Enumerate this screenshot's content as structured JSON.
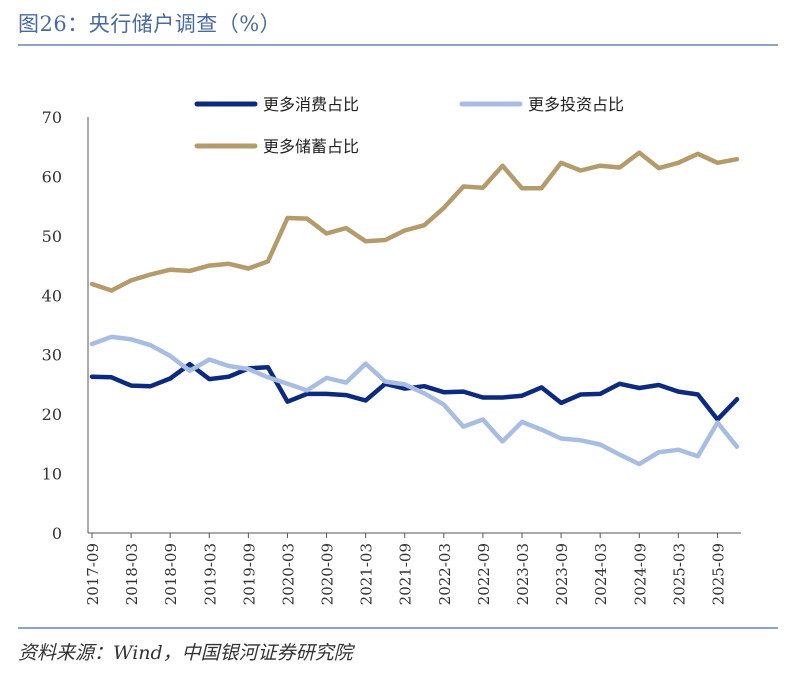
{
  "header": {
    "title": "图26：央行储户调查（%）"
  },
  "footer": {
    "source": "资料来源：Wind，中国银河证券研究院"
  },
  "chart_data": {
    "type": "line",
    "title": "",
    "xlabel": "",
    "ylabel": "",
    "ylim": [
      0,
      70
    ],
    "yticks": [
      0,
      10,
      20,
      30,
      40,
      50,
      60,
      70
    ],
    "grid": false,
    "legend_position": "top",
    "x": [
      "2017-09",
      "2017-12",
      "2018-03",
      "2018-06",
      "2018-09",
      "2018-12",
      "2019-03",
      "2019-06",
      "2019-09",
      "2019-12",
      "2020-03",
      "2020-06",
      "2020-09",
      "2020-12",
      "2021-03",
      "2021-06",
      "2021-09",
      "2021-12",
      "2022-03",
      "2022-06",
      "2022-09",
      "2022-12",
      "2023-03",
      "2023-06",
      "2023-09",
      "2023-12",
      "2024-03",
      "2024-06",
      "2024-09",
      "2024-12",
      "2025-03",
      "2025-06",
      "2025-09",
      "2025-12"
    ],
    "x_tick_labels": [
      "2017-09",
      "2018-03",
      "2018-09",
      "2019-03",
      "2019-09",
      "2020-03",
      "2020-09",
      "2021-03",
      "2021-09",
      "2022-03",
      "2022-09",
      "2023-03",
      "2023-09",
      "2024-03",
      "2024-09",
      "2025-03",
      "2025-09"
    ],
    "series": [
      {
        "name": "更多消费占比",
        "color": "#0d2b7e",
        "values": [
          26.3,
          26.2,
          24.8,
          24.7,
          26.0,
          28.4,
          25.9,
          26.3,
          27.7,
          27.9,
          22.1,
          23.4,
          23.4,
          23.2,
          22.3,
          25.1,
          24.3,
          24.7,
          23.7,
          23.8,
          22.8,
          22.8,
          23.1,
          24.5,
          21.9,
          23.3,
          23.4,
          25.1,
          24.4,
          24.9,
          23.8,
          23.3,
          19.1,
          22.5
        ]
      },
      {
        "name": "更多投资占比",
        "color": "#a9bde3",
        "values": [
          31.8,
          33.0,
          32.6,
          31.6,
          29.8,
          27.3,
          29.2,
          28.1,
          27.6,
          26.2,
          25.1,
          24.0,
          26.1,
          25.3,
          28.5,
          25.5,
          25.0,
          23.5,
          21.6,
          17.9,
          19.1,
          15.4,
          18.7,
          17.4,
          15.9,
          15.6,
          14.9,
          13.2,
          11.6,
          13.6,
          14.0,
          12.9,
          18.6,
          14.5
        ]
      },
      {
        "name": "更多储蓄占比",
        "color": "#b39b6c",
        "values": [
          41.9,
          40.8,
          42.5,
          43.5,
          44.3,
          44.1,
          45.0,
          45.3,
          44.5,
          45.7,
          53.0,
          52.9,
          50.4,
          51.3,
          49.1,
          49.3,
          50.9,
          51.8,
          54.7,
          58.3,
          58.1,
          61.8,
          58.0,
          58.0,
          62.3,
          61.0,
          61.8,
          61.5,
          64.0,
          61.4,
          62.3,
          63.8,
          62.3,
          62.9
        ]
      }
    ]
  }
}
